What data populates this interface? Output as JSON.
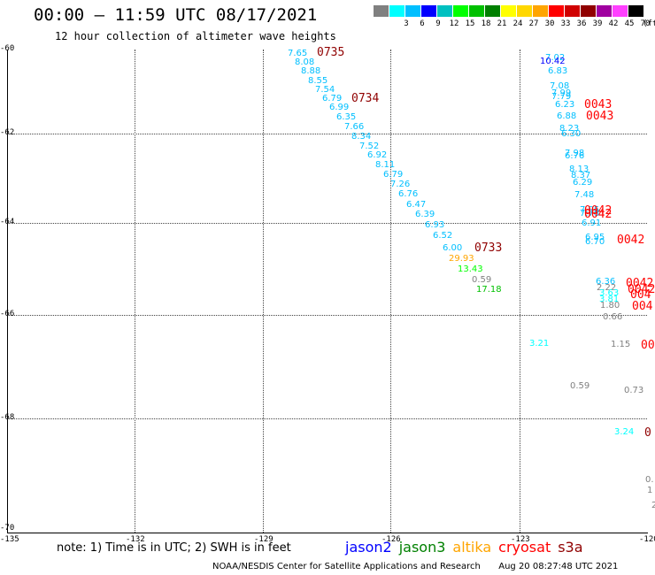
{
  "header": {
    "title": "00:00 – 11:59 UTC 08/17/2021",
    "subtitle": "12 hour collection of altimeter wave heights"
  },
  "legend": {
    "unit": "(ft)",
    "swatches": [
      {
        "color": "#808080",
        "label": ""
      },
      {
        "color": "#00ffff",
        "label": "3"
      },
      {
        "color": "#00bfff",
        "label": "6"
      },
      {
        "color": "#0000ff",
        "label": "9"
      },
      {
        "color": "#00c0c0",
        "label": "12"
      },
      {
        "color": "#00ff00",
        "label": "15"
      },
      {
        "color": "#00c000",
        "label": "18"
      },
      {
        "color": "#008000",
        "label": "21"
      },
      {
        "color": "#ffff00",
        "label": "24"
      },
      {
        "color": "#ffd700",
        "label": "27"
      },
      {
        "color": "#ffa500",
        "label": "30"
      },
      {
        "color": "#ff0000",
        "label": "33"
      },
      {
        "color": "#d00000",
        "label": "36"
      },
      {
        "color": "#900000",
        "label": "39"
      },
      {
        "color": "#a000a0",
        "label": "42"
      },
      {
        "color": "#ff40ff",
        "label": "45"
      },
      {
        "color": "#000000",
        "label": "70"
      }
    ]
  },
  "axes": {
    "y_ticks": [
      "-60",
      "-62",
      "-64",
      "-66",
      "-68",
      "-70"
    ],
    "x_ticks": [
      "-135",
      "-132",
      "-129",
      "-126",
      "-123",
      "-120"
    ]
  },
  "tracks": {
    "labels": [
      {
        "text": "0735",
        "color": "#900000"
      },
      {
        "text": "0734",
        "color": "#900000"
      },
      {
        "text": "0733",
        "color": "#900000"
      },
      {
        "text": "0043",
        "color": "#ff0000"
      },
      {
        "text": "0043",
        "color": "#ff0000"
      },
      {
        "text": "0042",
        "color": "#ff0000"
      },
      {
        "text": "0042",
        "color": "#ff0000"
      },
      {
        "text": "0042",
        "color": "#ff0000"
      },
      {
        "text": "0042",
        "color": "#ff0000"
      },
      {
        "text": "0042",
        "color": "#ff0000"
      },
      {
        "text": "004",
        "color": "#ff0000"
      },
      {
        "text": "004",
        "color": "#ff0000"
      },
      {
        "text": "00",
        "color": "#ff0000"
      },
      {
        "text": "0",
        "color": "#900000"
      }
    ],
    "values": [
      {
        "text": "7.65",
        "color": "#00bfff"
      },
      {
        "text": "8.08",
        "color": "#00bfff"
      },
      {
        "text": "8.88",
        "color": "#00bfff"
      },
      {
        "text": "8.55",
        "color": "#00bfff"
      },
      {
        "text": "7.54",
        "color": "#00bfff"
      },
      {
        "text": "6.79",
        "color": "#00bfff"
      },
      {
        "text": "6.99",
        "color": "#00bfff"
      },
      {
        "text": "6.35",
        "color": "#00bfff"
      },
      {
        "text": "7.66",
        "color": "#00bfff"
      },
      {
        "text": "8.34",
        "color": "#00bfff"
      },
      {
        "text": "7.52",
        "color": "#00bfff"
      },
      {
        "text": "6.92",
        "color": "#00bfff"
      },
      {
        "text": "8.11",
        "color": "#00bfff"
      },
      {
        "text": "6.79",
        "color": "#00bfff"
      },
      {
        "text": "7.26",
        "color": "#00bfff"
      },
      {
        "text": "6.76",
        "color": "#00bfff"
      },
      {
        "text": "6.47",
        "color": "#00bfff"
      },
      {
        "text": "6.39",
        "color": "#00bfff"
      },
      {
        "text": "6.93",
        "color": "#00bfff"
      },
      {
        "text": "6.52",
        "color": "#00bfff"
      },
      {
        "text": "6.00",
        "color": "#00bfff"
      },
      {
        "text": "29.93",
        "color": "#ffa500"
      },
      {
        "text": "13.43",
        "color": "#00ff00"
      },
      {
        "text": "0.59",
        "color": "#808080"
      },
      {
        "text": "17.18",
        "color": "#00c000"
      },
      {
        "text": "7.02",
        "color": "#00bfff"
      },
      {
        "text": "10.42",
        "color": "#0000ff"
      },
      {
        "text": "6.83",
        "color": "#00bfff"
      },
      {
        "text": "7.08",
        "color": "#00bfff"
      },
      {
        "text": "7.99",
        "color": "#00bfff"
      },
      {
        "text": "7.79",
        "color": "#00bfff"
      },
      {
        "text": "6.23",
        "color": "#00bfff"
      },
      {
        "text": "6.88",
        "color": "#00bfff"
      },
      {
        "text": "8.23",
        "color": "#00bfff"
      },
      {
        "text": "6.30",
        "color": "#00bfff"
      },
      {
        "text": "7.98",
        "color": "#00bfff"
      },
      {
        "text": "6.76",
        "color": "#00bfff"
      },
      {
        "text": "8.13",
        "color": "#00bfff"
      },
      {
        "text": "8.37",
        "color": "#00bfff"
      },
      {
        "text": "6.29",
        "color": "#00bfff"
      },
      {
        "text": "7.48",
        "color": "#00bfff"
      },
      {
        "text": "7.95",
        "color": "#00bfff"
      },
      {
        "text": "7.78",
        "color": "#00bfff"
      },
      {
        "text": "6.91",
        "color": "#00bfff"
      },
      {
        "text": "6.95",
        "color": "#00bfff"
      },
      {
        "text": "6.70",
        "color": "#00bfff"
      },
      {
        "text": "6.36",
        "color": "#00bfff"
      },
      {
        "text": "2.22",
        "color": "#808080"
      },
      {
        "text": "3.63",
        "color": "#00ffff"
      },
      {
        "text": "3.81",
        "color": "#00ffff"
      },
      {
        "text": "1.80",
        "color": "#808080"
      },
      {
        "text": "0.66",
        "color": "#808080"
      },
      {
        "text": "3.21",
        "color": "#00ffff"
      },
      {
        "text": "1.15",
        "color": "#808080"
      },
      {
        "text": "0.59",
        "color": "#808080"
      },
      {
        "text": "0.73",
        "color": "#808080"
      },
      {
        "text": "3.24",
        "color": "#00ffff"
      },
      {
        "text": "0.",
        "color": "#808080"
      },
      {
        "text": "1",
        "color": "#808080"
      },
      {
        "text": "2",
        "color": "#808080"
      }
    ]
  },
  "footer": {
    "note": "note: 1) Time is in UTC; 2) SWH is in feet",
    "satellites": [
      {
        "name": "jason2",
        "color": "#0000ff"
      },
      {
        "name": "jason3",
        "color": "#008000"
      },
      {
        "name": "altika",
        "color": "#ffa500"
      },
      {
        "name": "cryosat",
        "color": "#ff0000"
      },
      {
        "name": "s3a",
        "color": "#900000"
      }
    ],
    "credit": "NOAA/NESDIS Center for Satellite Applications and Research",
    "timestamp": "Aug 20 08:27:48 UTC 2021"
  }
}
